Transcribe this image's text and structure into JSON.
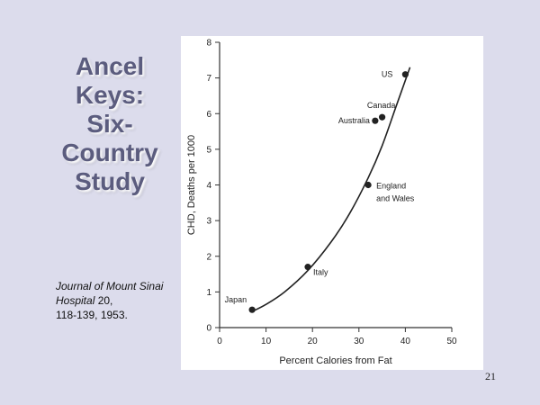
{
  "slide": {
    "title_lines": [
      "Ancel",
      "Keys:",
      "Six-",
      "Country",
      "Study"
    ],
    "citation": {
      "journal": "Journal of Mount Sinai Hospital",
      "rest": "20,",
      "line3": "118-139, 1953."
    },
    "page_number": "21"
  },
  "chart_data": {
    "type": "scatter",
    "xlabel": "Percent Calories from Fat",
    "ylabel": "CHD, Deaths per 1000",
    "xlim": [
      0,
      50
    ],
    "ylim": [
      0,
      8
    ],
    "x_ticks": [
      0,
      10,
      20,
      30,
      40,
      50
    ],
    "y_ticks": [
      0,
      1,
      2,
      3,
      4,
      5,
      6,
      7,
      8
    ],
    "points": [
      {
        "label": "Japan",
        "x": 7,
        "y": 0.5
      },
      {
        "label": "Italy",
        "x": 19,
        "y": 1.7
      },
      {
        "label": "England and Wales",
        "x": 32,
        "y": 4.0
      },
      {
        "label": "Australia",
        "x": 33.5,
        "y": 5.8
      },
      {
        "label": "Canada",
        "x": 35,
        "y": 5.9
      },
      {
        "label": "US",
        "x": 40,
        "y": 7.1
      }
    ],
    "trend_curve": [
      [
        7,
        0.45
      ],
      [
        10,
        0.65
      ],
      [
        14,
        1.0
      ],
      [
        19,
        1.6
      ],
      [
        24,
        2.4
      ],
      [
        28,
        3.2
      ],
      [
        32,
        4.2
      ],
      [
        35,
        5.1
      ],
      [
        38,
        6.2
      ],
      [
        41,
        7.3
      ]
    ],
    "grid": false,
    "legend": "none"
  }
}
